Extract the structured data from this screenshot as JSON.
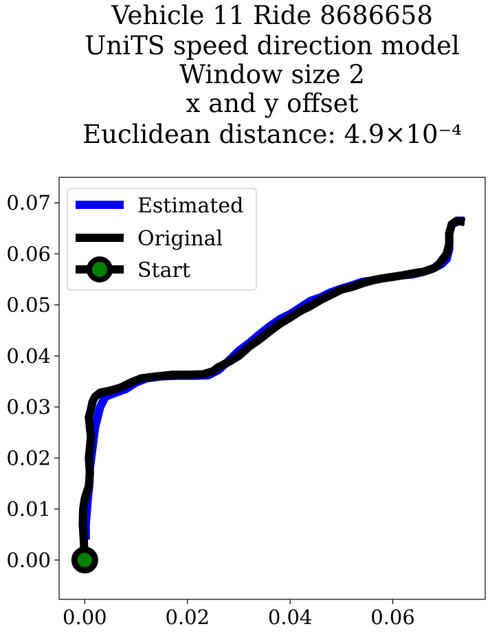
{
  "chart_data": {
    "type": "line",
    "title_lines": [
      "Vehicle 11 Ride 8686658",
      "UniTS speed direction model",
      "Window size 2",
      "x and y offset",
      "Euclidean distance: 4.9×10⁻⁴"
    ],
    "xlabel": "",
    "ylabel": "",
    "xlim": [
      -0.005,
      0.078
    ],
    "ylim": [
      -0.0077,
      0.075
    ],
    "xticks": [
      "0.00",
      "0.02",
      "0.04",
      "0.06"
    ],
    "xtick_values": [
      0.0,
      0.02,
      0.04,
      0.06
    ],
    "yticks": [
      "0.00",
      "0.01",
      "0.02",
      "0.03",
      "0.04",
      "0.05",
      "0.06",
      "0.07"
    ],
    "ytick_values": [
      0.0,
      0.01,
      0.02,
      0.03,
      0.04,
      0.05,
      0.06,
      0.07
    ],
    "grid": false,
    "legend_position": "upper left",
    "legend": [
      "Estimated",
      "Original",
      "Start"
    ],
    "colors": {
      "estimated": "#0000ff",
      "original": "#000000",
      "start_fill": "#008000",
      "start_edge": "#000000"
    },
    "series": [
      {
        "name": "Estimated",
        "x": [
          0.0002,
          0.0002,
          0.0006,
          0.0009,
          0.001,
          0.0015,
          0.002,
          0.0025,
          0.003,
          0.004,
          0.006,
          0.008,
          0.01,
          0.012,
          0.015,
          0.018,
          0.021,
          0.024,
          0.026,
          0.028,
          0.03,
          0.032,
          0.034,
          0.036,
          0.038,
          0.04,
          0.042,
          0.044,
          0.046,
          0.048,
          0.05,
          0.052,
          0.054,
          0.056,
          0.058,
          0.06,
          0.062,
          0.064,
          0.066,
          0.068,
          0.0695,
          0.0705,
          0.071,
          0.071,
          0.0715,
          0.073,
          0.074
        ],
        "y": [
          0.004,
          0.007,
          0.012,
          0.015,
          0.018,
          0.022,
          0.026,
          0.028,
          0.03,
          0.032,
          0.0328,
          0.0335,
          0.0348,
          0.0356,
          0.036,
          0.0361,
          0.0361,
          0.0362,
          0.0372,
          0.039,
          0.041,
          0.0425,
          0.0442,
          0.0458,
          0.0472,
          0.0482,
          0.0495,
          0.0508,
          0.0515,
          0.0525,
          0.0532,
          0.0538,
          0.0545,
          0.0548,
          0.0552,
          0.0555,
          0.0558,
          0.056,
          0.0565,
          0.0572,
          0.058,
          0.059,
          0.061,
          0.064,
          0.0658,
          0.0665,
          0.0665
        ]
      },
      {
        "name": "Original",
        "x": [
          0.0,
          -0.0002,
          -0.0004,
          -0.0003,
          0.0,
          0.0008,
          0.001,
          0.0008,
          0.001,
          0.0012,
          0.001,
          0.0008,
          0.0012,
          0.0015,
          0.002,
          0.003,
          0.005,
          0.007,
          0.009,
          0.011,
          0.014,
          0.017,
          0.02,
          0.023,
          0.025,
          0.026,
          0.028,
          0.03,
          0.032,
          0.034,
          0.036,
          0.038,
          0.04,
          0.042,
          0.044,
          0.046,
          0.048,
          0.05,
          0.052,
          0.054,
          0.056,
          0.058,
          0.06,
          0.062,
          0.064,
          0.066,
          0.068,
          0.069,
          0.0705,
          0.071,
          0.071,
          0.0715,
          0.0725,
          0.074
        ],
        "y": [
          0.0,
          0.004,
          0.007,
          0.01,
          0.012,
          0.0145,
          0.017,
          0.02,
          0.022,
          0.024,
          0.026,
          0.028,
          0.0295,
          0.031,
          0.032,
          0.0328,
          0.0332,
          0.0338,
          0.0348,
          0.0356,
          0.036,
          0.0363,
          0.0363,
          0.0364,
          0.037,
          0.0378,
          0.0388,
          0.04,
          0.0418,
          0.0432,
          0.0448,
          0.0463,
          0.0475,
          0.0488,
          0.0498,
          0.051,
          0.052,
          0.053,
          0.0535,
          0.0542,
          0.0548,
          0.0552,
          0.0555,
          0.0558,
          0.0562,
          0.0565,
          0.0572,
          0.058,
          0.06,
          0.062,
          0.064,
          0.0658,
          0.0665,
          0.0662
        ]
      }
    ],
    "start_point": {
      "x": 0.0,
      "y": 0.0
    }
  }
}
